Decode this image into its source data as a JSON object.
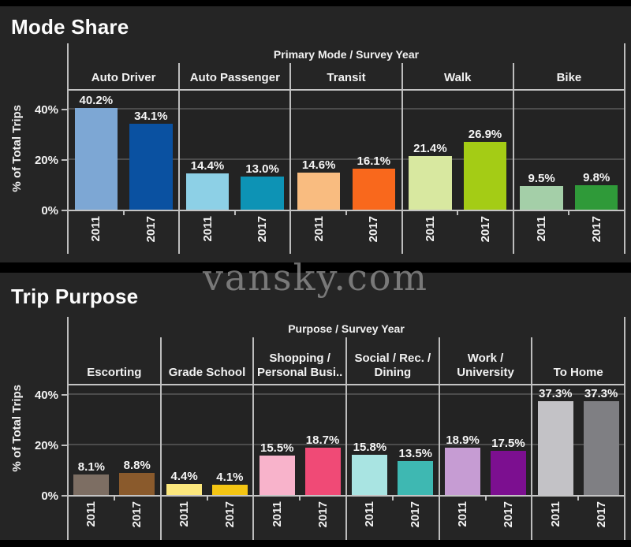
{
  "watermark": "vansky.com",
  "palette": {
    "background": "#252525",
    "plot_background": "#232323",
    "band_black": "#000000",
    "axis_line": "#bdbdbd",
    "gridline": "#4c4c4c",
    "text": "#f2f2f2"
  },
  "chart_data": [
    {
      "type": "bar",
      "title": "Mode Share",
      "panel_header": "Primary Mode  /  Survey Year",
      "ylabel": "% of Total Trips",
      "ylim": [
        0,
        48
      ],
      "ytick_values": [
        0,
        20,
        40
      ],
      "ytick_labels": [
        "0%",
        "20%",
        "40%"
      ],
      "grid": "horizontal",
      "legend": "none",
      "categories": [
        "Auto Driver",
        "Auto Passenger",
        "Transit",
        "Walk",
        "Bike"
      ],
      "series": [
        {
          "name": "2011",
          "values": [
            40.2,
            14.4,
            14.6,
            21.4,
            9.5
          ],
          "colors": [
            "#7da7d4",
            "#8dd0e6",
            "#f9bc80",
            "#d8e8a0",
            "#a4cfa8"
          ]
        },
        {
          "name": "2017",
          "values": [
            34.1,
            13.0,
            16.1,
            26.9,
            9.8
          ],
          "colors": [
            "#0a51a1",
            "#0d93b5",
            "#f9681c",
            "#a4cc15",
            "#2f9a39"
          ]
        }
      ]
    },
    {
      "type": "bar",
      "title": "Trip Purpose",
      "panel_header": "Purpose  /  Survey Year",
      "ylabel": "% of Total Trips",
      "ylim": [
        0,
        45
      ],
      "ytick_values": [
        0,
        20,
        40
      ],
      "ytick_labels": [
        "0%",
        "20%",
        "40%"
      ],
      "grid": "horizontal",
      "legend": "none",
      "categories": [
        "Escorting",
        "Grade School",
        "Shopping /\nPersonal Busi..",
        "Social / Rec. /\nDining",
        "Work /\nUniversity",
        "To Home"
      ],
      "series": [
        {
          "name": "2011",
          "values": [
            8.1,
            4.4,
            15.5,
            15.8,
            18.9,
            37.3
          ],
          "colors": [
            "#7d6e63",
            "#fbe77d",
            "#f8b3cb",
            "#a9e4e2",
            "#c69cd3",
            "#c3c2c6"
          ]
        },
        {
          "name": "2017",
          "values": [
            8.8,
            4.1,
            18.7,
            13.5,
            17.5,
            37.3
          ],
          "colors": [
            "#8a5a2c",
            "#f4c513",
            "#f04a76",
            "#3eb8b2",
            "#7c0f90",
            "#7f7f83"
          ]
        }
      ]
    }
  ]
}
